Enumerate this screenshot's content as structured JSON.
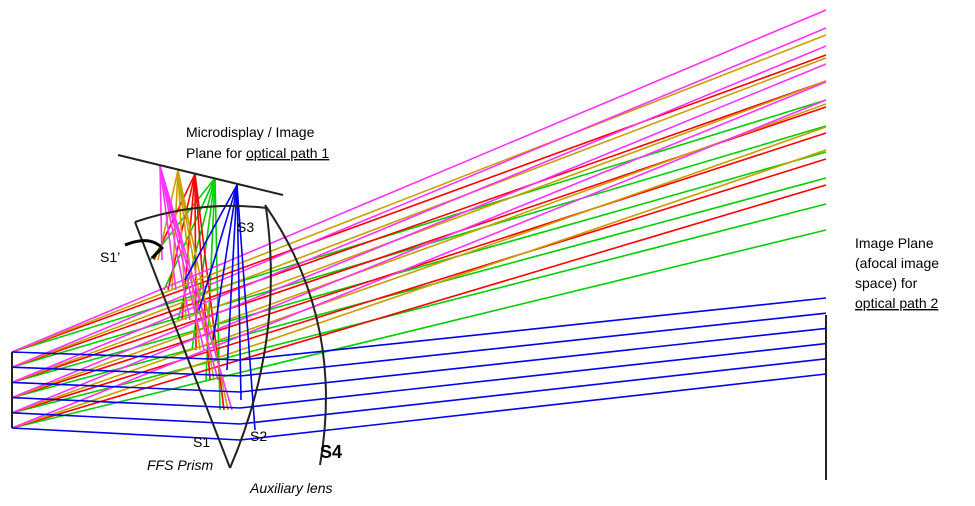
{
  "labels": {
    "display_line1": "Microdisplay / Image",
    "display_line2": "Plane for ",
    "display_line3": "optical path 1",
    "s3": "S3",
    "s1_prime": "S1’",
    "s1": "S1",
    "s2": "S2",
    "s4": "S4",
    "prism": "FFS Prism",
    "aux_lens": "Auxiliary lens",
    "image_line1": "Image Plane",
    "image_line2": "(afocal image",
    "image_line3": "space) for",
    "image_line4": "optical path 2"
  }
}
